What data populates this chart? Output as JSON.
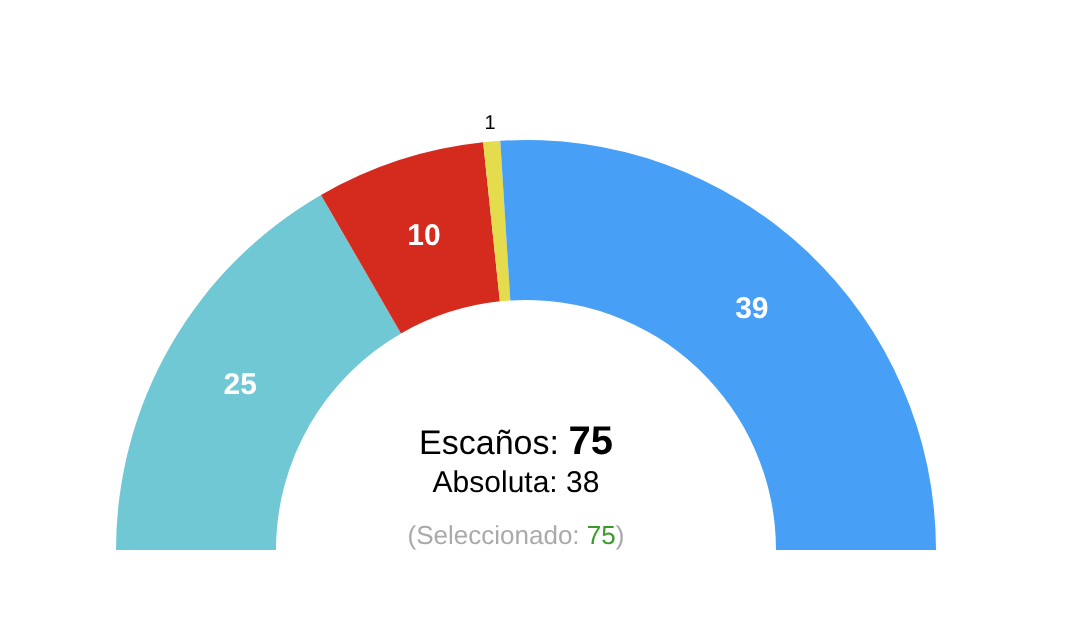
{
  "chart_data": {
    "type": "donut",
    "categories": [
      null,
      null,
      null,
      null
    ],
    "values": [
      25,
      10,
      1,
      39
    ],
    "colors": [
      "#70c8d4",
      "#d52b1e",
      "#e4dc4c",
      "#479ff6"
    ],
    "data_labels": true,
    "annotations": [
      "Escaños: 75",
      "Absoluta: 38",
      "(Seleccionado: 75)"
    ]
  }
}
